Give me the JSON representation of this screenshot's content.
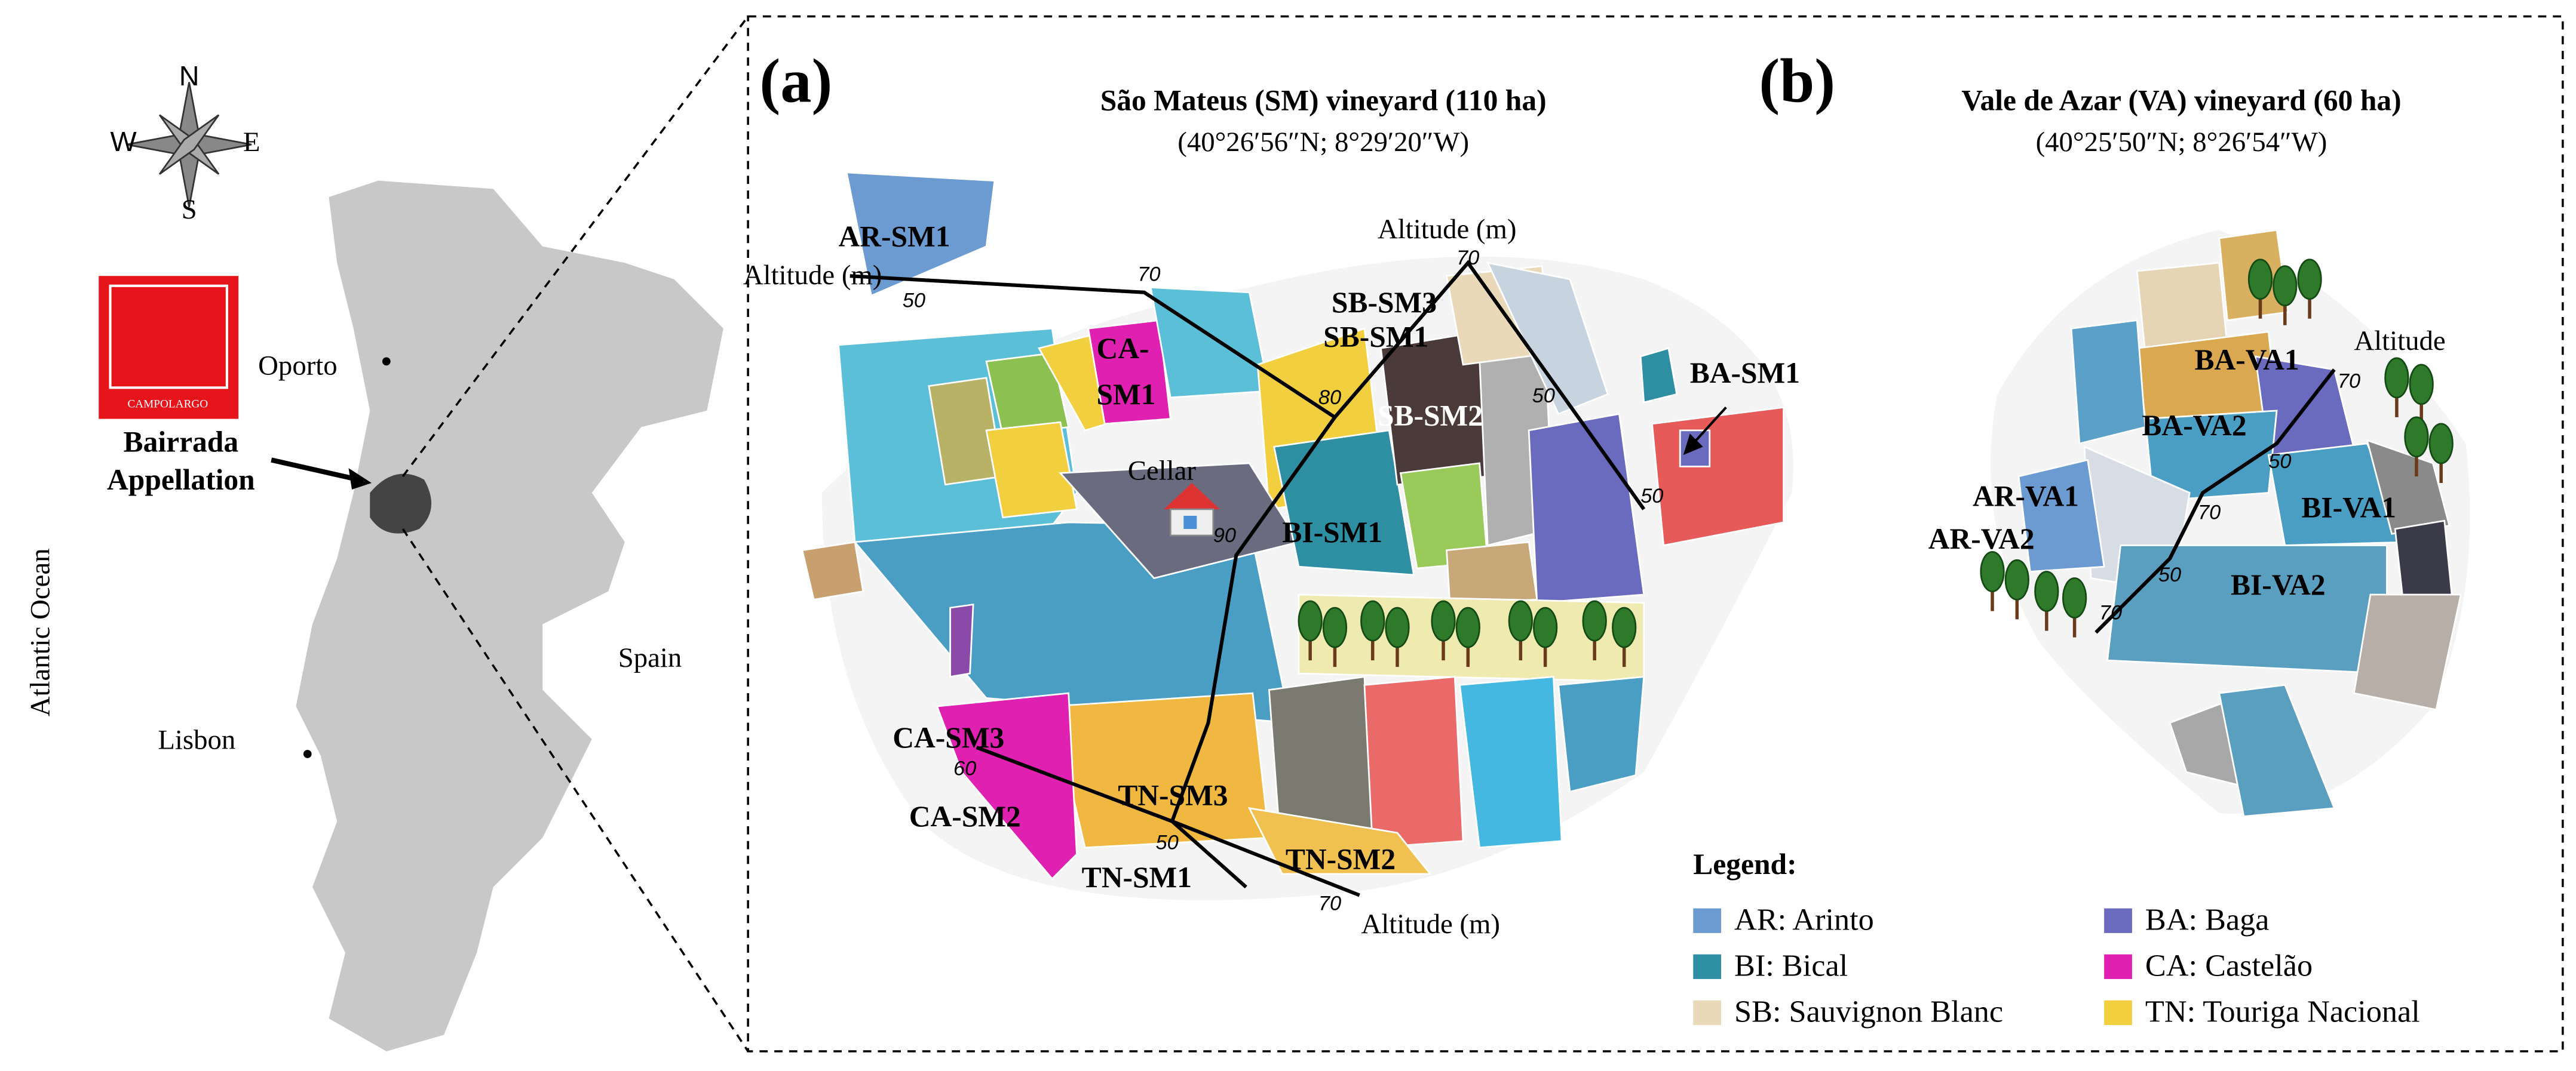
{
  "locator": {
    "compass": {
      "n": "N",
      "w": "W",
      "e": "E",
      "s": "S"
    },
    "logo": "CAMPOLARGO",
    "places": [
      "Oporto",
      "Lisbon",
      "Spain",
      "Atlantic Ocean"
    ],
    "appellation": [
      "Bairrada",
      "Appellation"
    ]
  },
  "panel_a": {
    "letter": "(a)",
    "title": "São Mateus (SM) vineyard (110 ha)",
    "coordinates": "(40°26′56″N; 8°29′20″W)",
    "plots": [
      "AR-SM1",
      "CA-",
      "SM1",
      "SB-SM3",
      "SB-SM1",
      "SB-SM2",
      "BA-SM1",
      "BI-SM1",
      "CA-SM3",
      "CA-SM2",
      "TN-SM3",
      "TN-SM1",
      "TN-SM2"
    ],
    "cellar": "Cellar",
    "altitude_labels": [
      "Altitude (m)",
      "Altitude (m)",
      "Altitude (m)"
    ],
    "contours": [
      50,
      70,
      80,
      90,
      70,
      50,
      50,
      60,
      50,
      70
    ]
  },
  "panel_b": {
    "letter": "(b)",
    "title": "Vale de Azar (VA) vineyard (60 ha)",
    "coordinates": "(40°25′50″N; 8°26′54″W)",
    "plots": [
      "BA-VA1",
      "BA-VA2",
      "AR-VA1",
      "AR-VA2",
      "BI-VA1",
      "BI-VA2"
    ],
    "altitude_label": "Altitude",
    "contours": [
      70,
      50,
      70,
      50,
      70
    ]
  },
  "legend": {
    "title": "Legend:",
    "items": [
      {
        "label": "AR: Arinto",
        "color": "#6b9bd1"
      },
      {
        "label": "BI: Bical",
        "color": "#2e8fa3"
      },
      {
        "label": "SB: Sauvignon Blanc",
        "color": "#ead9b8"
      },
      {
        "label": "BA: Baga",
        "color": "#6a6bbf"
      },
      {
        "label": "CA: Castelão",
        "color": "#e020b0"
      },
      {
        "label": "TN: Touriga Nacional",
        "color": "#f2cf3f"
      }
    ]
  }
}
